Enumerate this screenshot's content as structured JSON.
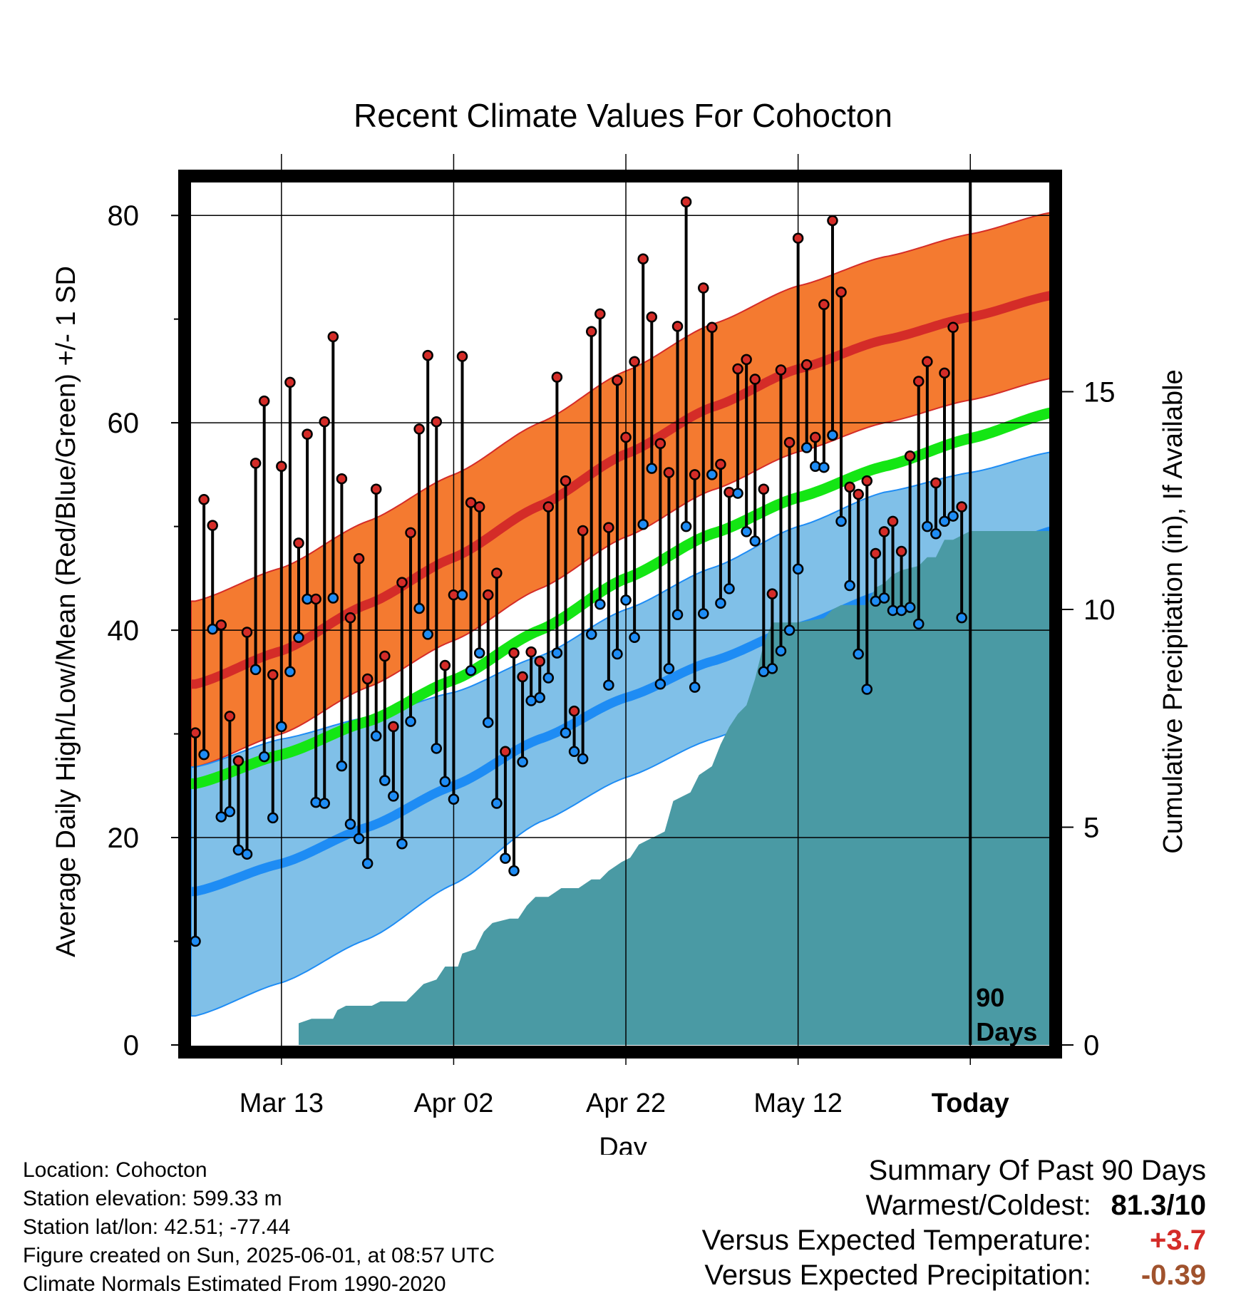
{
  "chart_data": {
    "type": "line",
    "title": "Recent Climate Values For Cohocton",
    "xlabel": "Day",
    "ylabel_left": "Average Daily High/Low/Mean (Red/Blue/Green) +/- 1 SD",
    "ylabel_right": "Cumulative Precipitation (in), If Available",
    "x_ticks": [
      {
        "day": 10,
        "label": "Mar 13"
      },
      {
        "day": 30,
        "label": "Apr 02"
      },
      {
        "day": 50,
        "label": "Apr 22"
      },
      {
        "day": 70,
        "label": "May 12"
      },
      {
        "day": 90,
        "label": "Today"
      }
    ],
    "x_range": [
      -0.5,
      99.5
    ],
    "today_day": 90,
    "today_label": [
      "90",
      "Days"
    ],
    "y_left_range": [
      0,
      84
    ],
    "y_left_ticks": [
      0,
      20,
      40,
      60,
      80
    ],
    "y_right_range": [
      0,
      20
    ],
    "y_right_ticks": [
      0,
      5,
      10,
      15
    ],
    "grid": true,
    "colors": {
      "high_band": "#f47a30",
      "high_mean": "#d42c28",
      "low_band": "#80c0e8",
      "low_mean": "#1e8cf4",
      "mean_line": "#14e614",
      "precip": "#4a9aa4",
      "high_dot": "#d42c28",
      "low_dot": "#1e8cf4"
    },
    "normal_high_mean": [
      [
        0,
        34.8
      ],
      [
        10,
        38.0
      ],
      [
        20,
        42.5
      ],
      [
        30,
        47.0
      ],
      [
        40,
        52.0
      ],
      [
        50,
        57.0
      ],
      [
        60,
        61.5
      ],
      [
        70,
        65.2
      ],
      [
        80,
        68.0
      ],
      [
        90,
        70.2
      ],
      [
        99.5,
        72.3
      ]
    ],
    "normal_high_sd": 8,
    "normal_low_mean": [
      [
        0,
        14.8
      ],
      [
        10,
        17.5
      ],
      [
        20,
        21.0
      ],
      [
        30,
        25.0
      ],
      [
        40,
        29.5
      ],
      [
        50,
        33.5
      ],
      [
        60,
        37.0
      ],
      [
        70,
        40.3
      ],
      [
        80,
        43.5
      ],
      [
        90,
        46.5
      ],
      [
        99.5,
        49.6
      ]
    ],
    "normal_low_upper": [
      [
        0,
        26.8
      ],
      [
        10,
        29.5
      ],
      [
        20,
        31.6
      ],
      [
        30,
        34.0
      ],
      [
        40,
        37.5
      ],
      [
        50,
        42.0
      ],
      [
        60,
        46.0
      ],
      [
        70,
        50.0
      ],
      [
        80,
        53.3
      ],
      [
        90,
        55.2
      ],
      [
        99.5,
        57.2
      ]
    ],
    "normal_low_lower": [
      [
        0,
        2.8
      ],
      [
        10,
        6.0
      ],
      [
        20,
        10.2
      ],
      [
        30,
        15.5
      ],
      [
        40,
        21.5
      ],
      [
        50,
        25.8
      ],
      [
        60,
        29.5
      ],
      [
        70,
        33.0
      ],
      [
        80,
        36.0
      ],
      [
        90,
        39.5
      ],
      [
        99.5,
        42.5
      ]
    ],
    "normal_mean": [
      [
        0,
        25.2
      ],
      [
        10,
        28.0
      ],
      [
        20,
        31.2
      ],
      [
        30,
        35.2
      ],
      [
        40,
        40.0
      ],
      [
        50,
        45.0
      ],
      [
        60,
        49.3
      ],
      [
        70,
        52.8
      ],
      [
        80,
        55.8
      ],
      [
        90,
        58.5
      ],
      [
        99.5,
        61.0
      ]
    ],
    "daily_high": [
      30.1,
      52.6,
      50.1,
      40.5,
      31.7,
      27.4,
      39.8,
      56.1,
      62.1,
      35.7,
      55.8,
      63.9,
      48.4,
      58.9,
      43.0,
      60.1,
      68.3,
      54.6,
      41.2,
      46.9,
      35.3,
      53.6,
      37.5,
      30.7,
      44.6,
      49.4,
      59.4,
      66.5,
      60.1,
      36.6,
      43.4,
      66.4,
      52.3,
      51.9,
      43.4,
      45.5,
      28.3,
      37.8,
      35.5,
      37.9,
      37.0,
      51.9,
      64.4,
      54.4,
      32.2,
      49.6,
      68.8,
      70.5,
      49.9,
      64.1,
      58.6,
      65.9,
      75.8,
      70.2,
      58.0,
      55.2,
      69.3,
      81.3,
      55.0,
      73.0,
      69.2,
      56.0,
      53.3,
      65.2,
      66.1,
      64.2,
      53.6,
      43.5,
      65.1,
      58.1,
      77.8,
      65.6,
      58.6,
      71.4,
      79.5,
      72.6,
      53.8,
      53.1,
      54.4,
      47.4,
      49.5,
      50.5,
      47.6,
      56.8,
      64.0,
      65.9,
      54.2,
      64.8,
      69.2,
      51.9
    ],
    "daily_low": [
      10.0,
      28.0,
      40.1,
      22.0,
      22.5,
      18.8,
      18.4,
      36.2,
      27.8,
      21.9,
      30.7,
      36.0,
      39.3,
      43.0,
      23.4,
      23.3,
      43.1,
      26.9,
      21.3,
      19.9,
      17.5,
      29.8,
      25.5,
      24.0,
      19.4,
      31.2,
      42.1,
      39.6,
      28.6,
      25.4,
      23.7,
      43.4,
      36.1,
      37.8,
      31.1,
      23.3,
      18.0,
      16.8,
      27.3,
      33.2,
      33.5,
      35.4,
      37.8,
      30.1,
      28.3,
      27.6,
      39.6,
      42.5,
      34.7,
      37.7,
      42.9,
      39.3,
      50.2,
      55.6,
      34.8,
      36.3,
      41.5,
      50.0,
      34.5,
      41.6,
      55.0,
      42.6,
      44.0,
      53.2,
      49.5,
      48.6,
      36.0,
      36.3,
      38.0,
      40.0,
      45.9,
      57.6,
      55.8,
      55.7,
      58.8,
      50.5,
      44.3,
      37.7,
      34.3,
      42.8,
      43.1,
      41.9,
      41.9,
      42.2,
      40.6,
      50.0,
      49.3,
      50.5,
      51.0,
      41.2
    ],
    "cumulative_precip": [
      [
        0,
        0
      ],
      [
        12.0,
        0
      ],
      [
        12.0,
        0.5
      ],
      [
        13.5,
        0.6
      ],
      [
        16.0,
        0.6
      ],
      [
        16.5,
        0.8
      ],
      [
        17.5,
        0.9
      ],
      [
        20.5,
        0.9
      ],
      [
        21.5,
        1.0
      ],
      [
        24.5,
        1.0
      ],
      [
        25.5,
        1.2
      ],
      [
        26.5,
        1.4
      ],
      [
        28.0,
        1.5
      ],
      [
        29.0,
        1.8
      ],
      [
        30.5,
        1.8
      ],
      [
        31.0,
        2.1
      ],
      [
        32.5,
        2.2
      ],
      [
        33.5,
        2.6
      ],
      [
        34.5,
        2.8
      ],
      [
        36.5,
        2.9
      ],
      [
        37.5,
        2.9
      ],
      [
        38.5,
        3.2
      ],
      [
        39.5,
        3.4
      ],
      [
        41.0,
        3.4
      ],
      [
        42.5,
        3.6
      ],
      [
        44.5,
        3.6
      ],
      [
        46.0,
        3.8
      ],
      [
        47.0,
        3.8
      ],
      [
        48.0,
        4.0
      ],
      [
        49.5,
        4.2
      ],
      [
        50.5,
        4.3
      ],
      [
        51.5,
        4.6
      ],
      [
        52.5,
        4.7
      ],
      [
        53.5,
        4.8
      ],
      [
        54.5,
        4.9
      ],
      [
        55.5,
        5.6
      ],
      [
        57.5,
        5.8
      ],
      [
        58.5,
        6.2
      ],
      [
        60.0,
        6.4
      ],
      [
        61.0,
        6.9
      ],
      [
        62.0,
        7.3
      ],
      [
        63.0,
        7.6
      ],
      [
        64.0,
        7.8
      ],
      [
        65.0,
        8.4
      ],
      [
        66.0,
        9.2
      ],
      [
        67.0,
        9.7
      ],
      [
        68.0,
        9.7
      ],
      [
        70.0,
        9.7
      ],
      [
        73.0,
        9.8
      ],
      [
        74.0,
        10.0
      ],
      [
        75.0,
        10.1
      ],
      [
        78.0,
        10.1
      ],
      [
        79.0,
        10.5
      ],
      [
        80.0,
        10.6
      ],
      [
        81.0,
        10.8
      ],
      [
        82.0,
        10.9
      ],
      [
        84.0,
        11.0
      ],
      [
        85.0,
        11.2
      ],
      [
        86.0,
        11.2
      ],
      [
        87.0,
        11.6
      ],
      [
        88.0,
        11.6
      ],
      [
        89.0,
        11.7
      ],
      [
        90.0,
        11.8
      ],
      [
        99.5,
        11.8
      ]
    ]
  },
  "location": "Location: Cohocton",
  "elevation": "Station elevation: 599.33 m",
  "latlon": "Station lat/lon: 42.51; -77.44",
  "created": "Figure created on Sun, 2025-06-01, at 08:57 UTC",
  "normals": "Climate Normals Estimated From 1990-2020",
  "summary": {
    "title": "Summary Of Past 90 Days",
    "warmest_label": "Warmest/Coldest:",
    "warmest_value": "81.3/10",
    "temp_label": "Versus Expected Temperature:",
    "temp_value": "+3.7",
    "temp_color": "#d42c28",
    "precip_label": "Versus Expected Precipitation:",
    "precip_value": "-0.39",
    "precip_color": "#a0522d"
  }
}
